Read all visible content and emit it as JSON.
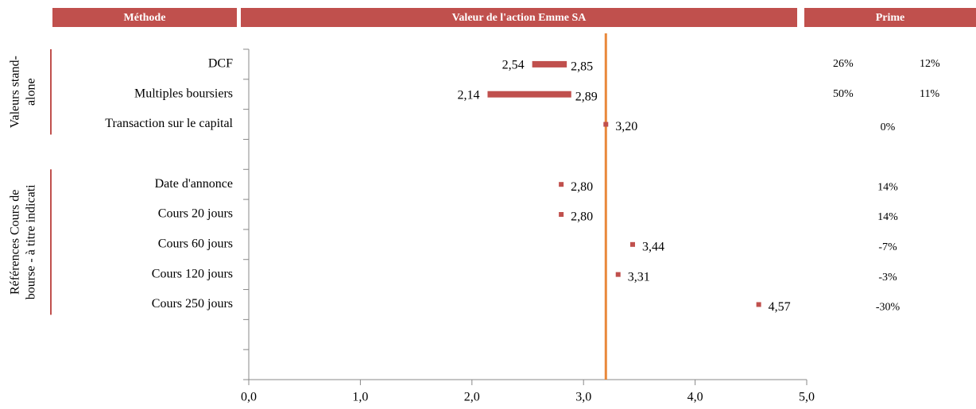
{
  "chart_data": {
    "type": "range",
    "headers": [
      "Méthode",
      "Valeur de l'action Emme SA",
      "Prime"
    ],
    "groups": [
      [
        "Valeurs stand-",
        "alone"
      ],
      [
        "Références Cours de",
        "bourse - à titre indicati"
      ]
    ],
    "categories": [
      "DCF",
      "Multiples boursiers",
      "Transaction sur le capital",
      null,
      "Date d'annonce",
      "Cours 20 jours",
      "Cours 60 jours",
      "Cours 120 jours",
      "Cours 250 jours",
      null,
      null
    ],
    "values": [
      [
        2.54,
        2.85
      ],
      [
        2.14,
        2.89
      ],
      [
        3.2
      ],
      null,
      [
        2.8
      ],
      [
        2.8
      ],
      [
        3.44
      ],
      [
        3.31
      ],
      [
        4.57
      ],
      null,
      null
    ],
    "value_labels": [
      [
        "2,54",
        "2,85"
      ],
      [
        "2,14",
        "2,89"
      ],
      [
        "3,20"
      ],
      null,
      [
        "2,80"
      ],
      [
        "2,80"
      ],
      [
        "3,44"
      ],
      [
        "3,31"
      ],
      [
        "4,57"
      ],
      null,
      null
    ],
    "premiums": [
      [
        26,
        12
      ],
      [
        50,
        11
      ],
      [
        0
      ],
      null,
      [
        14
      ],
      [
        14
      ],
      [
        -7
      ],
      [
        -3
      ],
      [
        -30
      ],
      null,
      null
    ],
    "premium_labels": [
      [
        "26%",
        "12%"
      ],
      [
        "50%",
        "11%"
      ],
      [
        "0%"
      ],
      null,
      [
        "14%"
      ],
      [
        "14%"
      ],
      [
        "-7%"
      ],
      [
        "-3%"
      ],
      [
        "-30%"
      ],
      null,
      null
    ],
    "reference_line": 3.2,
    "color": "#c0504d",
    "reference_color": "#e9883a",
    "xlim": [
      0,
      5
    ],
    "xticks": [
      {
        "value": 0,
        "label": "0,0"
      },
      {
        "value": 1,
        "label": "1,0"
      },
      {
        "value": 2,
        "label": "2,0"
      },
      {
        "value": 3,
        "label": "3,0"
      },
      {
        "value": 4,
        "label": "4,0"
      },
      {
        "value": 5,
        "label": "5,0"
      }
    ]
  }
}
